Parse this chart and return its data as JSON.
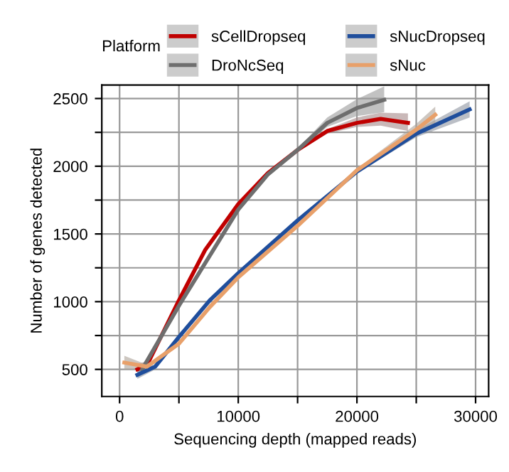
{
  "chart_data": {
    "type": "line",
    "xlabel": "Sequencing depth (mapped reads)",
    "ylabel": "Number of genes detected",
    "legend_title": "Platform",
    "xlim": [
      -1500,
      31100
    ],
    "ylim": [
      300,
      2600
    ],
    "xticks": [
      0,
      {
        "value": 5000,
        "label": null
      },
      10000,
      {
        "value": 15000,
        "label": null
      },
      20000,
      {
        "value": 25000,
        "label": null
      },
      30000
    ],
    "yticks": [
      500,
      {
        "value": 750,
        "label": null
      },
      1000,
      {
        "value": 1250,
        "label": null
      },
      1500,
      {
        "value": 1750,
        "label": null
      },
      2000,
      {
        "value": 2250,
        "label": null
      },
      2500
    ],
    "grid": true,
    "legend": "top",
    "line_style": "solid",
    "marker": "none",
    "series": [
      {
        "name": "sCellDropseq",
        "color": "#c00000",
        "x": [
          1500,
          2300,
          5000,
          7200,
          10000,
          12500,
          15000,
          17500,
          20000,
          22000,
          24300
        ],
        "values": [
          500,
          530,
          1010,
          1380,
          1720,
          1950,
          2120,
          2260,
          2320,
          2350,
          2320
        ],
        "lower": [
          460,
          510,
          990,
          1365,
          1705,
          1943,
          2105,
          2240,
          2290,
          2300,
          2260
        ],
        "upper": [
          540,
          560,
          1025,
          1390,
          1727,
          1963,
          2125,
          2275,
          2360,
          2395,
          2390
        ]
      },
      {
        "name": "DroNcSeq",
        "color": "#6e6e6e",
        "x": [
          1900,
          5000,
          10000,
          12500,
          15000,
          17500,
          20000,
          22300
        ],
        "values": [
          500,
          970,
          1680,
          1940,
          2120,
          2320,
          2430,
          2490
        ],
        "lower": [
          470,
          955,
          1670,
          1925,
          2100,
          2290,
          2370,
          2400
        ],
        "upper": [
          530,
          990,
          1695,
          1948,
          2130,
          2360,
          2495,
          2590
        ]
      },
      {
        "name": "sNucDropseq",
        "color": "#1f4e9c",
        "x": [
          1500,
          3000,
          5000,
          7600,
          10000,
          15000,
          20000,
          25000,
          29500
        ],
        "values": [
          460,
          520,
          740,
          1010,
          1210,
          1600,
          1960,
          2240,
          2420
        ],
        "lower": [
          430,
          500,
          725,
          998,
          1200,
          1589,
          1948,
          2215,
          2360
        ],
        "upper": [
          490,
          535,
          748,
          1016,
          1218,
          1607,
          1970,
          2265,
          2480
        ]
      },
      {
        "name": "sNuc",
        "color": "#e8a06a",
        "x": [
          400,
          2300,
          5000,
          7600,
          10000,
          15000,
          20000,
          25000,
          26600
        ],
        "values": [
          550,
          520,
          690,
          960,
          1180,
          1560,
          1970,
          2270,
          2380
        ],
        "lower": [
          500,
          500,
          675,
          947,
          1167,
          1555,
          1958,
          2235,
          2310
        ],
        "upper": [
          600,
          535,
          698,
          965,
          1185,
          1573,
          1982,
          2313,
          2440
        ]
      }
    ]
  }
}
